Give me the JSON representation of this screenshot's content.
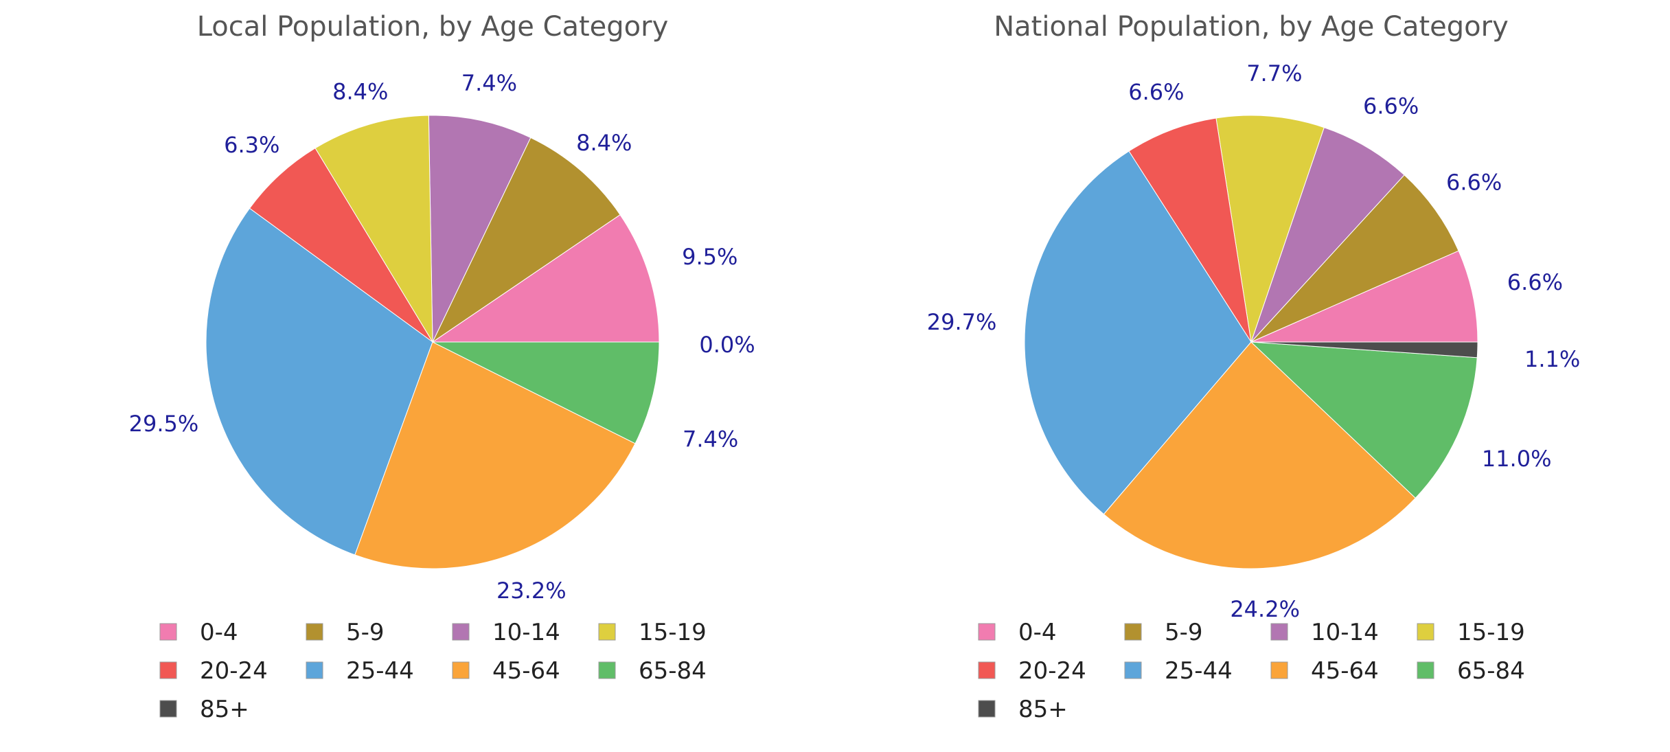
{
  "chart_data": [
    {
      "type": "pie",
      "title": "Local Population, by Age Category",
      "categories": [
        "0-4",
        "5-9",
        "10-14",
        "15-19",
        "20-24",
        "25-44",
        "45-64",
        "65-84",
        "85+"
      ],
      "values": [
        9.5,
        8.4,
        7.4,
        8.4,
        6.3,
        29.5,
        23.2,
        7.4,
        0.0
      ],
      "labels": [
        "9.5%",
        "8.4%",
        "7.4%",
        "8.4%",
        "6.3%",
        "29.5%",
        "23.2%",
        "7.4%",
        "0.0%"
      ],
      "colors": [
        "#f17cb0",
        "#b2912f",
        "#b276b2",
        "#decf3f",
        "#f15854",
        "#5da5da",
        "#faa43a",
        "#60bd68",
        "#4d4d4d"
      ],
      "legend_placement": "bottom"
    },
    {
      "type": "pie",
      "title": "National Population, by Age Category",
      "categories": [
        "0-4",
        "5-9",
        "10-14",
        "15-19",
        "20-24",
        "25-44",
        "45-64",
        "65-84",
        "85+"
      ],
      "values": [
        6.6,
        6.6,
        6.6,
        7.7,
        6.6,
        29.7,
        24.2,
        11.0,
        1.1
      ],
      "labels": [
        "6.6%",
        "6.6%",
        "6.6%",
        "7.7%",
        "6.6%",
        "29.7%",
        "24.2%",
        "11.0%",
        "1.1%"
      ],
      "colors": [
        "#f17cb0",
        "#b2912f",
        "#b276b2",
        "#decf3f",
        "#f15854",
        "#5da5da",
        "#faa43a",
        "#60bd68",
        "#4d4d4d"
      ],
      "legend_placement": "bottom"
    }
  ]
}
